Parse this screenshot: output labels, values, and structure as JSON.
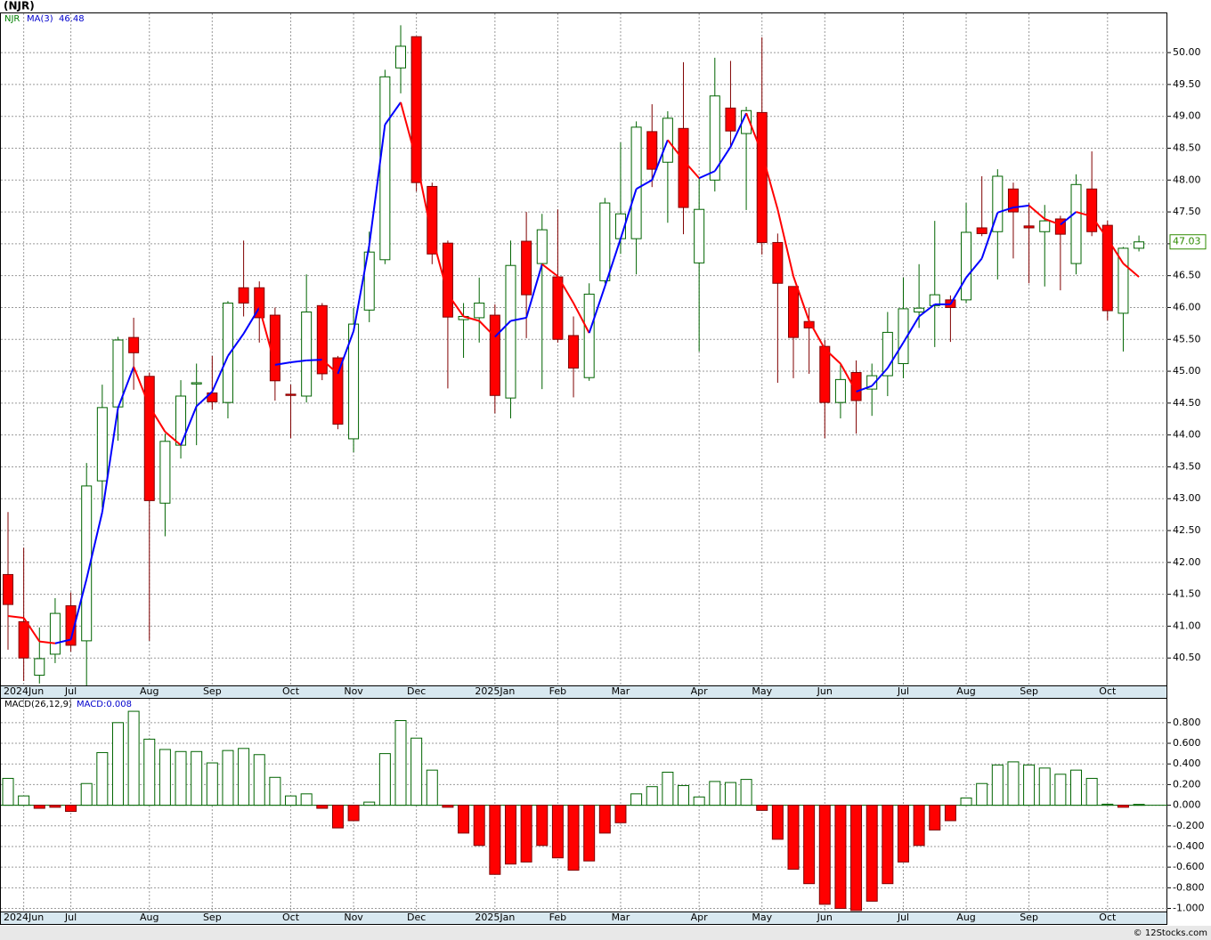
{
  "title": "(NJR)",
  "footer": "© 12Stocks.com",
  "chart_data": [
    {
      "type": "candlestick",
      "categories": [
        null,
        "2024Jun",
        null,
        null,
        "Jul",
        null,
        null,
        null,
        null,
        "Aug",
        null,
        null,
        null,
        "Sep",
        null,
        null,
        null,
        null,
        "Oct",
        null,
        null,
        null,
        "Nov",
        null,
        null,
        null,
        "Dec",
        null,
        null,
        null,
        null,
        "2025Jan",
        null,
        null,
        null,
        "Feb",
        null,
        null,
        null,
        "Mar",
        null,
        null,
        null,
        null,
        "Apr",
        null,
        null,
        null,
        "May",
        null,
        null,
        null,
        "Jun",
        null,
        null,
        null,
        null,
        "Jul",
        null,
        null,
        null,
        "Aug",
        null,
        null,
        null,
        "Sep",
        null,
        null,
        null,
        null,
        "Oct",
        null,
        null
      ],
      "series": [
        {
          "name": "NJR",
          "up_color": "#ffffff",
          "down_color": "#ff0000",
          "edge_color": "#006400",
          "open": [
            41.81,
            41.07,
            40.23,
            40.56,
            41.32,
            40.77,
            43.28,
            44.44,
            45.53,
            44.92,
            42.93,
            43.84,
            44.8,
            44.66,
            44.51,
            46.31,
            46.31,
            45.88,
            44.64,
            44.61,
            46.03,
            45.21,
            43.94,
            45.96,
            46.75,
            49.76,
            50.25,
            47.9,
            47.01,
            45.81,
            45.84,
            45.88,
            44.58,
            47.04,
            46.69,
            46.48,
            45.56,
            44.9,
            46.42,
            47.08,
            47.08,
            48.76,
            48.28,
            48.81,
            46.7,
            48.0,
            49.13,
            48.73,
            49.06,
            47.02,
            46.33,
            45.78,
            45.39,
            44.51,
            44.98,
            44.72,
            44.93,
            45.12,
            45.93,
            46.03,
            46.12,
            46.12,
            47.25,
            47.19,
            47.86,
            47.28,
            47.19,
            47.39,
            46.69,
            47.86,
            47.29,
            45.91,
            46.93
          ],
          "high": [
            42.79,
            42.23,
            40.98,
            41.44,
            41.53,
            43.56,
            44.79,
            45.54,
            45.84,
            44.98,
            44.02,
            44.86,
            45.12,
            45.24,
            46.1,
            47.05,
            46.41,
            46.0,
            44.79,
            46.52,
            46.07,
            45.24,
            46.0,
            47.19,
            49.73,
            50.43,
            50.25,
            47.96,
            47.05,
            46.07,
            46.47,
            46.05,
            47.05,
            47.5,
            47.47,
            47.54,
            45.86,
            46.38,
            47.72,
            48.59,
            48.92,
            49.19,
            49.08,
            49.85,
            48.03,
            49.92,
            49.87,
            49.15,
            50.24,
            47.16,
            46.33,
            46.0,
            45.49,
            45.1,
            45.17,
            45.12,
            45.93,
            46.47,
            46.68,
            47.36,
            46.19,
            47.64,
            48.06,
            48.17,
            47.96,
            47.64,
            47.61,
            47.44,
            48.09,
            48.45,
            47.36,
            46.95,
            47.13
          ],
          "low": [
            40.63,
            40.14,
            40.1,
            40.42,
            40.6,
            40.07,
            42.86,
            43.91,
            44.71,
            40.77,
            42.41,
            43.63,
            43.84,
            44.4,
            44.26,
            45.86,
            45.45,
            44.54,
            43.95,
            44.51,
            44.86,
            44.09,
            43.73,
            45.77,
            46.68,
            49.36,
            47.82,
            46.68,
            44.73,
            45.21,
            45.45,
            44.34,
            44.26,
            45.52,
            44.72,
            45.45,
            44.59,
            44.85,
            46.38,
            46.84,
            46.52,
            47.89,
            47.33,
            47.15,
            45.31,
            47.82,
            48.52,
            47.53,
            46.83,
            44.82,
            44.89,
            44.96,
            43.95,
            44.26,
            44.02,
            44.3,
            44.61,
            44.89,
            45.68,
            45.38,
            45.46,
            46.07,
            47.12,
            46.44,
            46.77,
            46.38,
            46.33,
            46.27,
            46.52,
            47.12,
            45.8,
            45.31,
            46.88
          ],
          "close": [
            41.34,
            40.5,
            40.49,
            41.2,
            40.7,
            43.2,
            44.43,
            45.49,
            45.29,
            42.97,
            43.9,
            44.61,
            44.82,
            44.52,
            46.07,
            46.07,
            45.84,
            44.85,
            44.62,
            45.93,
            44.96,
            44.17,
            45.74,
            46.87,
            49.62,
            50.1,
            47.96,
            46.84,
            45.85,
            45.86,
            46.07,
            44.62,
            46.66,
            46.2,
            47.22,
            45.5,
            45.05,
            46.21,
            47.64,
            47.47,
            48.83,
            48.17,
            48.97,
            47.57,
            47.54,
            49.32,
            48.77,
            49.09,
            47.02,
            46.38,
            45.53,
            45.68,
            44.51,
            44.87,
            44.54,
            44.93,
            45.61,
            45.98,
            45.99,
            46.2,
            46.0,
            47.18,
            47.16,
            48.06,
            47.5,
            47.25,
            47.36,
            47.15,
            47.93,
            47.19,
            45.95,
            46.93,
            47.03
          ]
        },
        {
          "name": "MA(3)",
          "color": "#0000ff",
          "down_color": "#ff0000",
          "values": [
            41.16,
            41.13,
            40.76,
            40.73,
            40.79,
            41.74,
            42.79,
            44.42,
            45.07,
            44.45,
            44.05,
            43.84,
            44.45,
            44.68,
            45.24,
            45.59,
            46.0,
            45.1,
            45.14,
            45.17,
            45.18,
            44.96,
            45.63,
            46.98,
            48.87,
            49.22,
            48.31,
            47.12,
            46.21,
            45.86,
            45.79,
            45.54,
            45.79,
            45.84,
            46.68,
            46.49,
            46.07,
            45.6,
            46.33,
            47.08,
            47.86,
            48.0,
            48.63,
            48.31,
            48.03,
            48.14,
            48.52,
            49.05,
            48.42,
            47.54,
            46.49,
            45.79,
            45.35,
            45.12,
            44.68,
            44.77,
            45.05,
            45.45,
            45.86,
            46.05,
            46.05,
            46.47,
            46.77,
            47.49,
            47.57,
            47.6,
            47.39,
            47.3,
            47.5,
            47.43,
            47.08,
            46.69,
            46.48
          ]
        }
      ],
      "legend_value": 46.48,
      "last_price": 47.03,
      "last_price_color": "#2e8b00",
      "ylim": [
        40.07,
        50.63
      ],
      "yticks": [
        {
          "value": 40.5,
          "label": "40.50"
        },
        {
          "value": 41,
          "label": "41.00"
        },
        {
          "value": 41.5,
          "label": "41.50"
        },
        {
          "value": 42,
          "label": "42.00"
        },
        {
          "value": 42.5,
          "label": "42.50"
        },
        {
          "value": 43,
          "label": "43.00"
        },
        {
          "value": 43.5,
          "label": "43.50"
        },
        {
          "value": 44,
          "label": "44.00"
        },
        {
          "value": 44.5,
          "label": "44.50"
        },
        {
          "value": 45,
          "label": "45.00"
        },
        {
          "value": 45.5,
          "label": "45.50"
        },
        {
          "value": 46,
          "label": "46.00"
        },
        {
          "value": 46.5,
          "label": "46.50"
        },
        {
          "value": 47,
          "label": "47.00"
        },
        {
          "value": 47.5,
          "label": "47.50"
        },
        {
          "value": 48,
          "label": "48.00"
        },
        {
          "value": 48.5,
          "label": "48.50"
        },
        {
          "value": 49,
          "label": "49.00"
        },
        {
          "value": 49.5,
          "label": "49.50"
        },
        {
          "value": 50,
          "label": "50.00"
        }
      ],
      "grid": true
    },
    {
      "type": "bar",
      "categories": [
        null,
        "2024Jun",
        null,
        null,
        "Jul",
        null,
        null,
        null,
        null,
        "Aug",
        null,
        null,
        null,
        "Sep",
        null,
        null,
        null,
        null,
        "Oct",
        null,
        null,
        null,
        "Nov",
        null,
        null,
        null,
        "Dec",
        null,
        null,
        null,
        null,
        "2025Jan",
        null,
        null,
        null,
        "Feb",
        null,
        null,
        null,
        "Mar",
        null,
        null,
        null,
        null,
        "Apr",
        null,
        null,
        null,
        "May",
        null,
        null,
        null,
        "Jun",
        null,
        null,
        null,
        null,
        "Jul",
        null,
        null,
        null,
        "Aug",
        null,
        null,
        null,
        "Sep",
        null,
        null,
        null,
        null,
        "Oct",
        null,
        null
      ],
      "series": [
        {
          "name": "MACD(26,12,9)",
          "up_color": "#ffffff",
          "down_color": "#ff0000",
          "edge_color": "#006400",
          "values": [
            0.26,
            0.09,
            -0.03,
            -0.02,
            -0.06,
            0.21,
            0.51,
            0.8,
            0.91,
            0.64,
            0.54,
            0.52,
            0.52,
            0.41,
            0.53,
            0.55,
            0.49,
            0.27,
            0.09,
            0.11,
            -0.03,
            -0.22,
            -0.15,
            0.03,
            0.5,
            0.82,
            0.65,
            0.34,
            -0.02,
            -0.27,
            -0.39,
            -0.67,
            -0.57,
            -0.55,
            -0.39,
            -0.51,
            -0.63,
            -0.54,
            -0.27,
            -0.17,
            0.11,
            0.18,
            0.32,
            0.19,
            0.08,
            0.23,
            0.22,
            0.25,
            -0.05,
            -0.33,
            -0.62,
            -0.76,
            -0.96,
            -1.0,
            -1.02,
            -0.93,
            -0.76,
            -0.55,
            -0.39,
            -0.24,
            -0.15,
            0.07,
            0.21,
            0.39,
            0.42,
            0.39,
            0.36,
            0.3,
            0.34,
            0.26,
            0.01,
            -0.02,
            0.008
          ]
        }
      ],
      "legend_text": "MACD:0.008",
      "ylim": [
        -1.03,
        1.04
      ],
      "yticks": [
        {
          "value": -1,
          "label": "-1.000"
        },
        {
          "value": -0.8,
          "label": "-0.800"
        },
        {
          "value": -0.6,
          "label": "-0.600"
        },
        {
          "value": -0.4,
          "label": "-0.400"
        },
        {
          "value": -0.2,
          "label": "-0.200"
        },
        {
          "value": 0,
          "label": "0.000"
        },
        {
          "value": 0.2,
          "label": "0.200"
        },
        {
          "value": 0.4,
          "label": "0.400"
        },
        {
          "value": 0.6,
          "label": "0.600"
        },
        {
          "value": 0.8,
          "label": "0.800"
        }
      ],
      "grid": true
    }
  ]
}
